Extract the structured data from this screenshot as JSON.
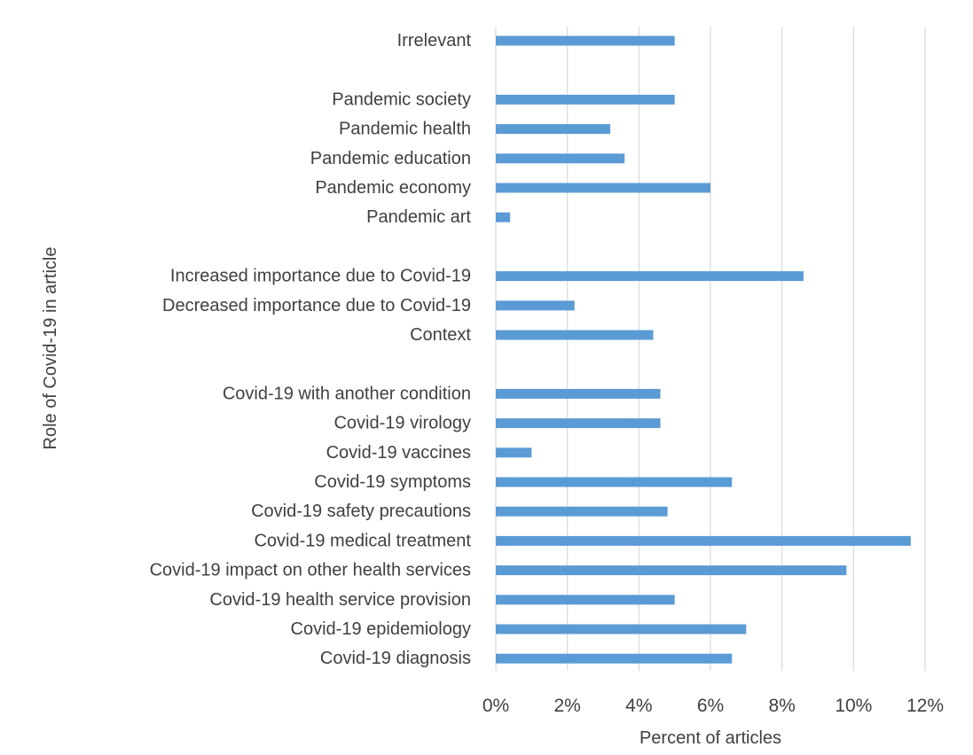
{
  "chart_data": {
    "type": "bar",
    "orientation": "horizontal",
    "title": "",
    "xlabel": "Percent of articles",
    "ylabel": "Role of Covid-19 in article",
    "xlim": [
      0,
      12
    ],
    "xticks": [
      0,
      2,
      4,
      6,
      8,
      10,
      12
    ],
    "xtick_labels": [
      "0%",
      "2%",
      "4%",
      "6%",
      "8%",
      "10%",
      "12%"
    ],
    "grid": "vertical",
    "bar_color": "#5b9bd5",
    "categories": [
      "Irrelevant",
      "",
      "Pandemic society",
      "Pandemic health",
      "Pandemic education",
      "Pandemic economy",
      "Pandemic art",
      "",
      "Increased importance due to Covid-19",
      "Decreased importance due to Covid-19",
      "Context",
      "",
      "Covid-19 with another condition",
      "Covid-19 virology",
      "Covid-19 vaccines",
      "Covid-19 symptoms",
      "Covid-19 safety precautions",
      "Covid-19 medical treatment",
      "Covid-19 impact on other health services",
      "Covid-19 health service provision",
      "Covid-19 epidemiology",
      "Covid-19 diagnosis"
    ],
    "values": [
      5.0,
      null,
      5.0,
      3.2,
      3.6,
      6.0,
      0.4,
      null,
      8.6,
      2.2,
      4.4,
      null,
      4.6,
      4.6,
      1.0,
      6.6,
      4.8,
      11.6,
      9.8,
      5.0,
      7.0,
      6.6
    ]
  }
}
